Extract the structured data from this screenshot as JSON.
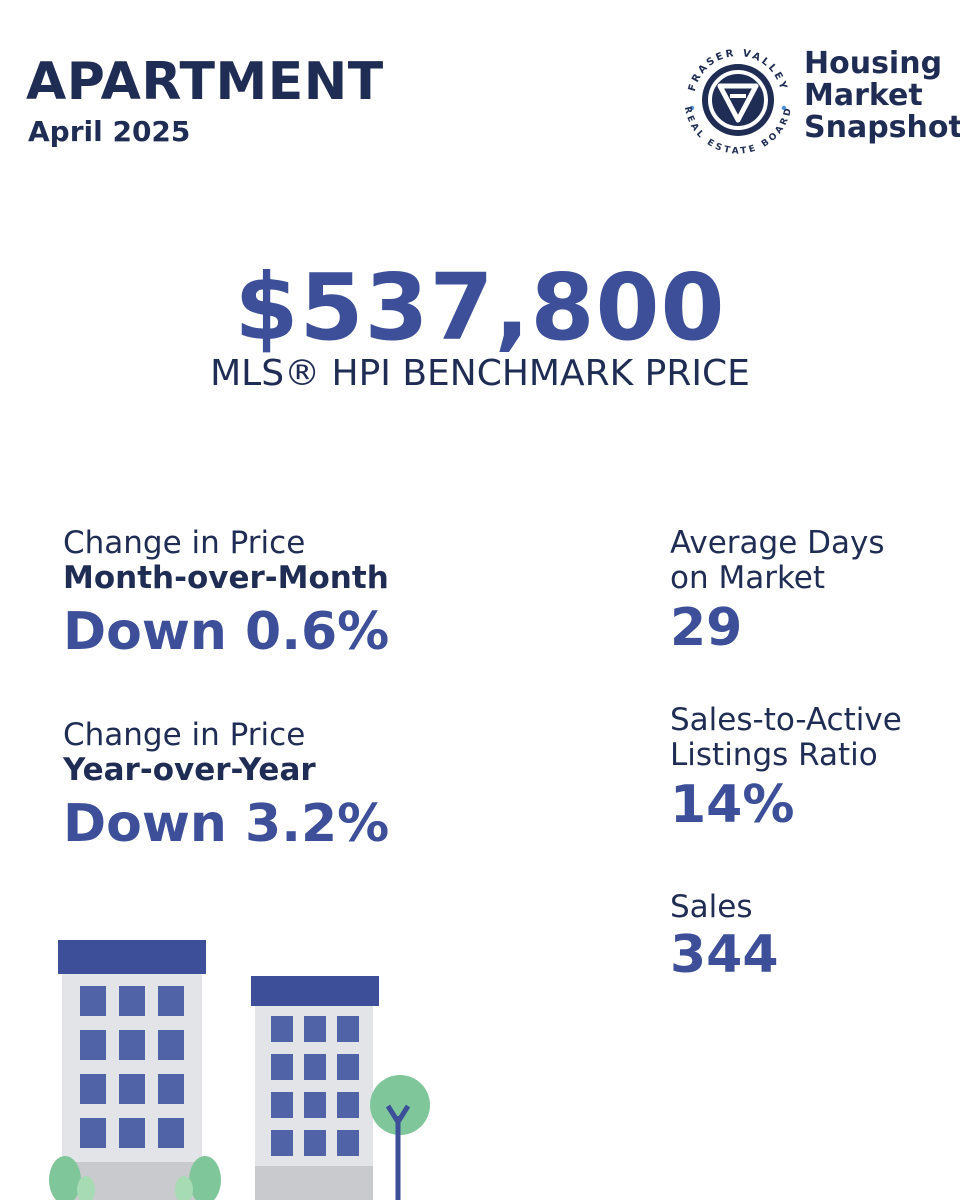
{
  "header": {
    "title": "APARTMENT",
    "period": "April 2025"
  },
  "logo": {
    "ring_top_text": "FRASER VALLEY",
    "ring_bottom_text": "REAL ESTATE BOARD",
    "tagline_lines": [
      "Housing",
      "Market",
      "Snapshot"
    ]
  },
  "benchmark": {
    "price": "$537,800",
    "label": "MLS® HPI BENCHMARK PRICE"
  },
  "stats_left": [
    {
      "label_line1": "Change in Price",
      "label_line2": "Month-over-Month",
      "value": "Down 0.6%"
    },
    {
      "label_line1": "Change in Price",
      "label_line2": "Year-over-Year",
      "value": "Down 3.2%"
    }
  ],
  "stats_right": [
    {
      "label_line1": "Average Days",
      "label_line2": "on Market",
      "value": "29"
    },
    {
      "label_line1": "Sales-to-Active",
      "label_line2": "Listings Ratio",
      "value": "14%"
    },
    {
      "label_line1": "Sales",
      "value": "344"
    }
  ],
  "colors": {
    "navy": "#1f2d54",
    "accent_blue": "#3c4f98",
    "building_gray": "#e3e4e7",
    "window_blue": "#4f63a6",
    "tree_green": "#7fc79a"
  },
  "icons": [
    "fvreb-logo-icon",
    "apartment-building-icon",
    "tree-icon",
    "bush-icon"
  ]
}
